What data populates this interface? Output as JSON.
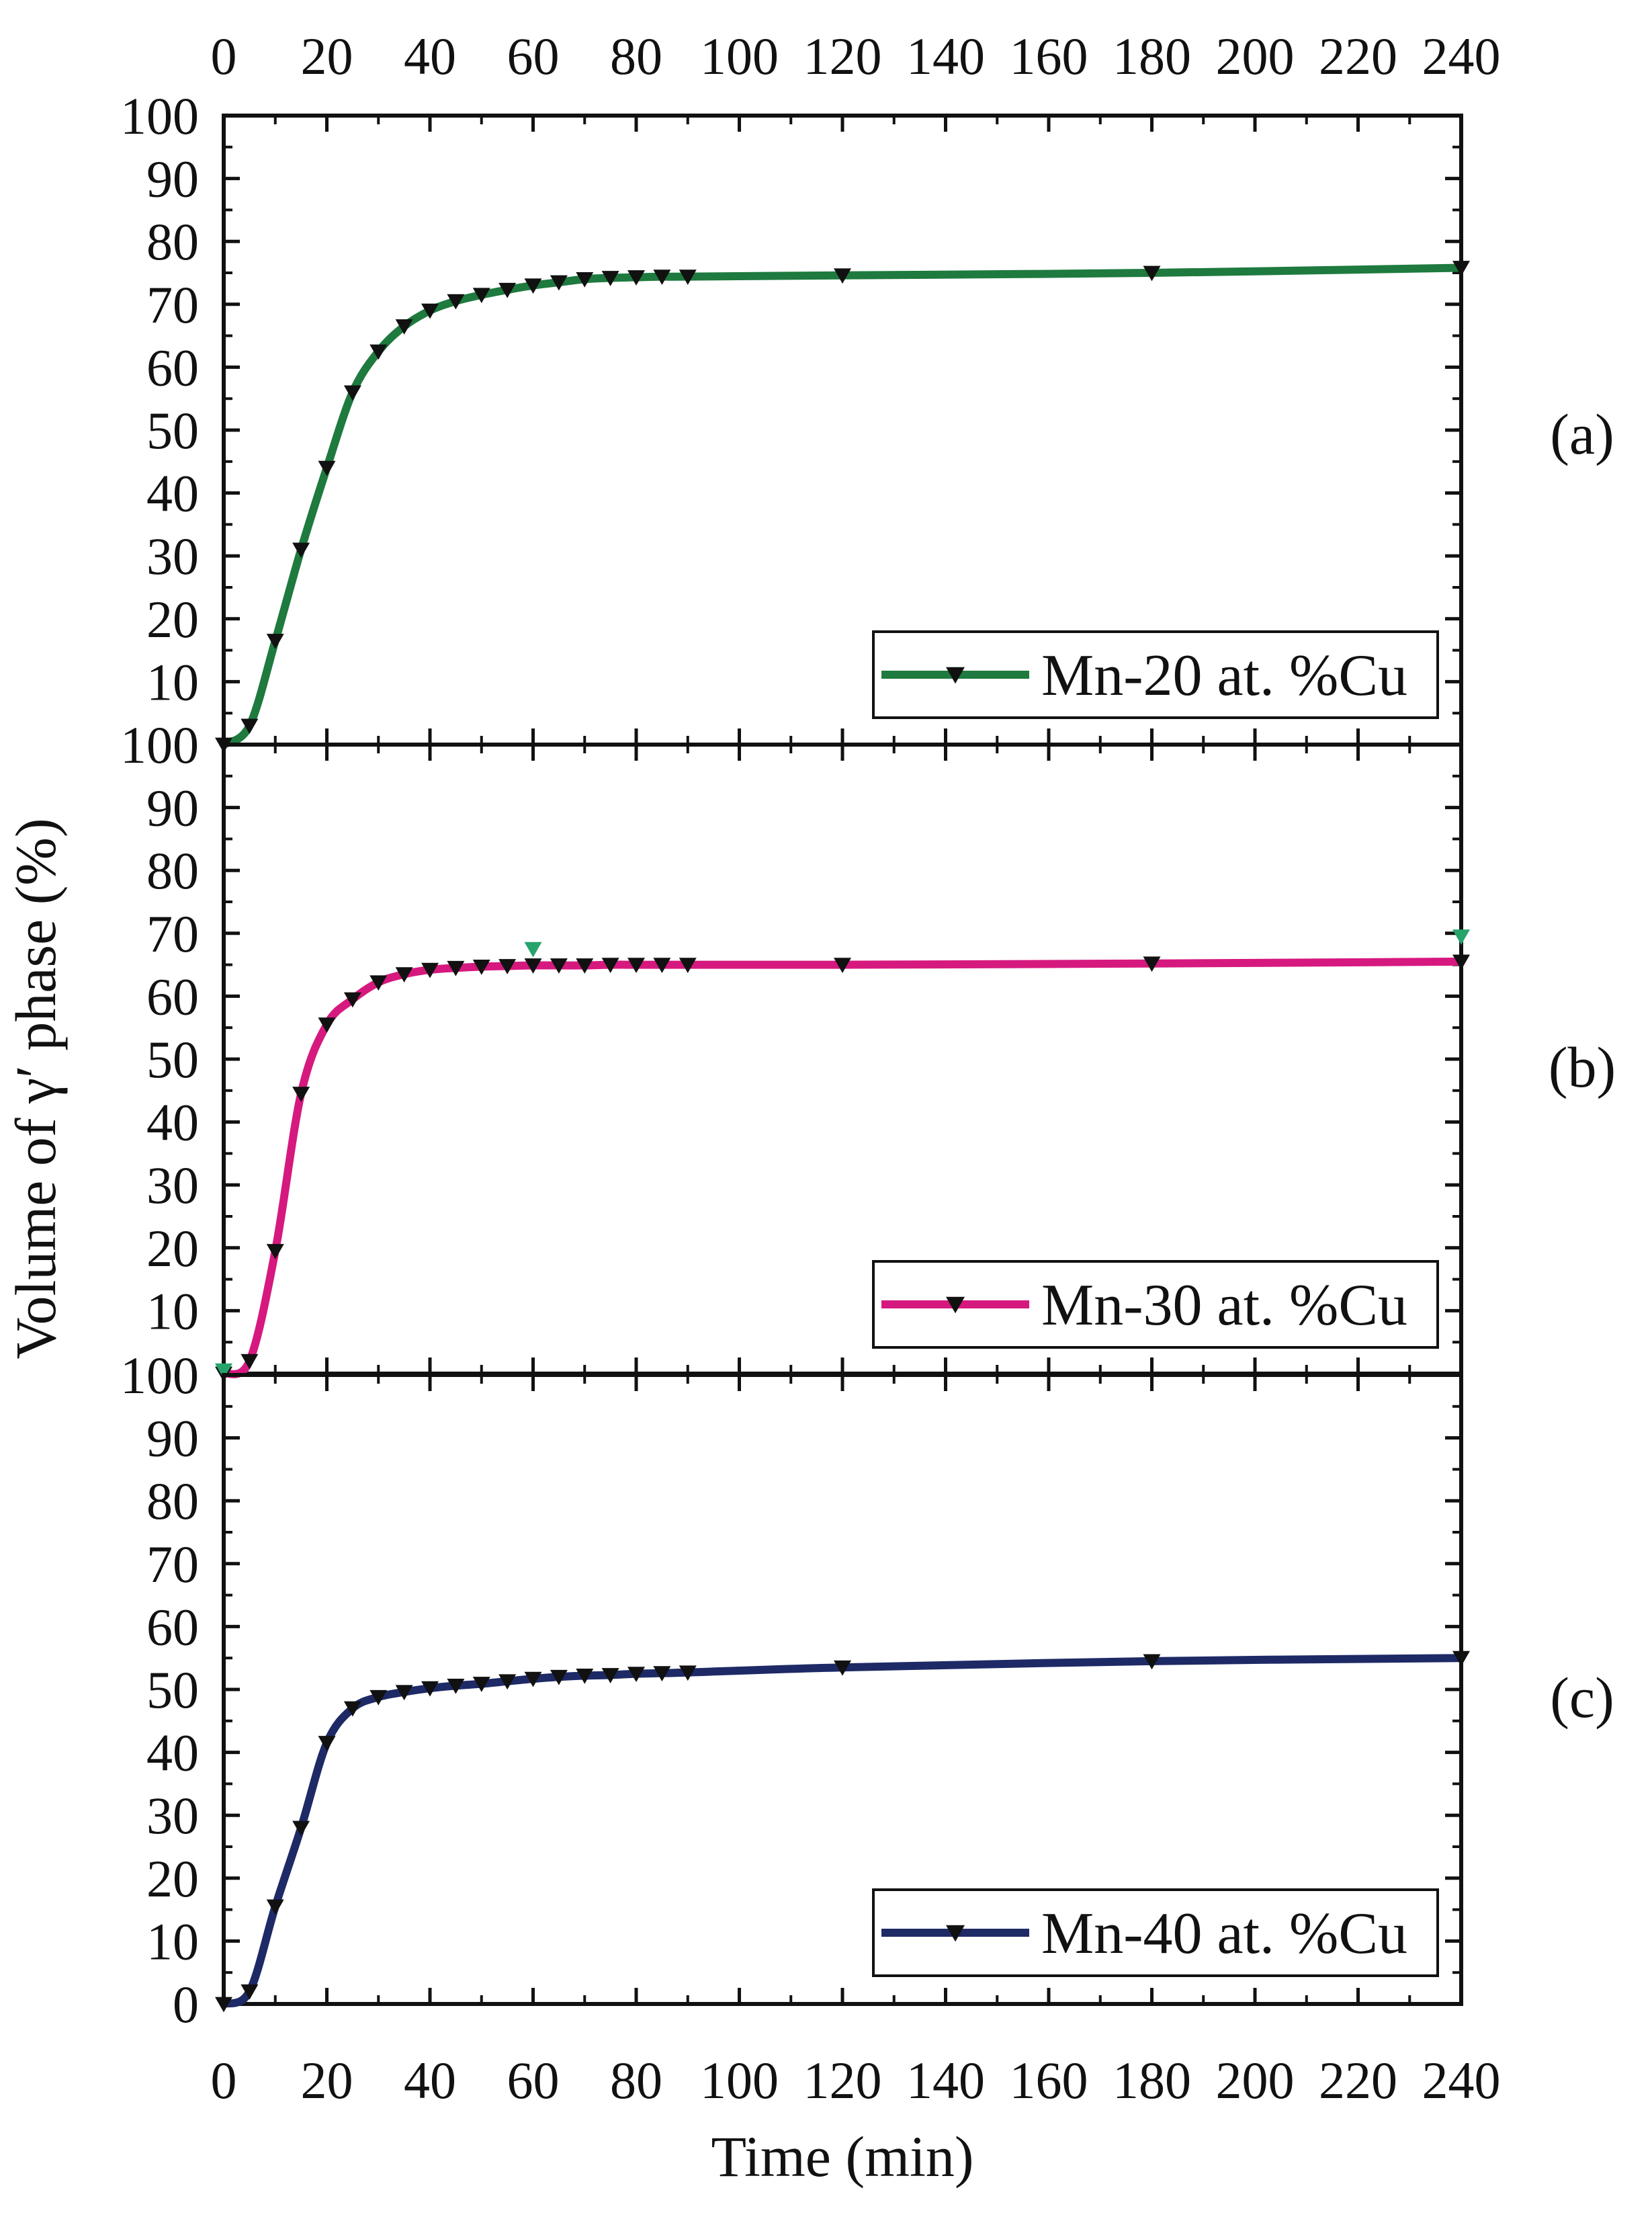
{
  "chart_data": {
    "type": "line",
    "title": "",
    "xlabel": "Time (min)",
    "ylabel": "Volume of γ′ phase (%)",
    "xlim": [
      0,
      240
    ],
    "ylim": [
      0,
      100
    ],
    "x_ticks": [
      0,
      20,
      40,
      60,
      80,
      100,
      120,
      140,
      160,
      180,
      200,
      220,
      240
    ],
    "y_ticks": [
      0,
      10,
      20,
      30,
      40,
      50,
      60,
      70,
      80,
      90,
      100
    ],
    "x_tick_labels": [
      "0",
      "20",
      "40",
      "60",
      "80",
      "100",
      "120",
      "140",
      "160",
      "180",
      "200",
      "220",
      "240"
    ],
    "y_tick_labels_panel": [
      "10",
      "20",
      "30",
      "40",
      "50",
      "60",
      "70",
      "80",
      "90",
      "100"
    ],
    "y_tick_labels_bottom_panel": [
      "0",
      "10",
      "20",
      "30",
      "40",
      "50",
      "60",
      "70",
      "80",
      "90",
      "100"
    ],
    "x": [
      0,
      5,
      10,
      15,
      20,
      25,
      30,
      35,
      40,
      45,
      50,
      55,
      60,
      65,
      70,
      75,
      80,
      85,
      90,
      120,
      180,
      240
    ],
    "series": [
      {
        "name": "Mn-20 at. %Cu",
        "panel": "(a)",
        "color": "#1e7a3e",
        "values": [
          0,
          3,
          16.5,
          31,
          44,
          56,
          62.5,
          66.5,
          69,
          70.5,
          71.5,
          72.3,
          73,
          73.5,
          74,
          74.2,
          74.3,
          74.4,
          74.4,
          74.6,
          75,
          75.8
        ]
      },
      {
        "name": "Mn-30 at. %Cu",
        "panel": "(b)",
        "color": "#d6197f",
        "values": [
          0,
          2,
          19.5,
          44.5,
          55.5,
          59.5,
          62.2,
          63.5,
          64.2,
          64.5,
          64.7,
          64.8,
          64.9,
          64.9,
          64.9,
          65,
          65,
          65,
          65,
          65,
          65.2,
          65.5
        ],
        "stray_points": [
          {
            "x": 0,
            "y": 0.5
          },
          {
            "x": 60,
            "y": 67.5
          },
          {
            "x": 240,
            "y": 69.5
          }
        ],
        "stray_color": "#26a36b"
      },
      {
        "name": "Mn-40 at. %Cu",
        "panel": "(c)",
        "color": "#1e2a66",
        "values": [
          0,
          2,
          15.5,
          28,
          41.5,
          47,
          48.8,
          49.6,
          50.2,
          50.6,
          50.9,
          51.3,
          51.7,
          52,
          52.2,
          52.3,
          52.5,
          52.6,
          52.7,
          53.5,
          54.5,
          55
        ]
      }
    ],
    "legend_location": "lower-right"
  }
}
